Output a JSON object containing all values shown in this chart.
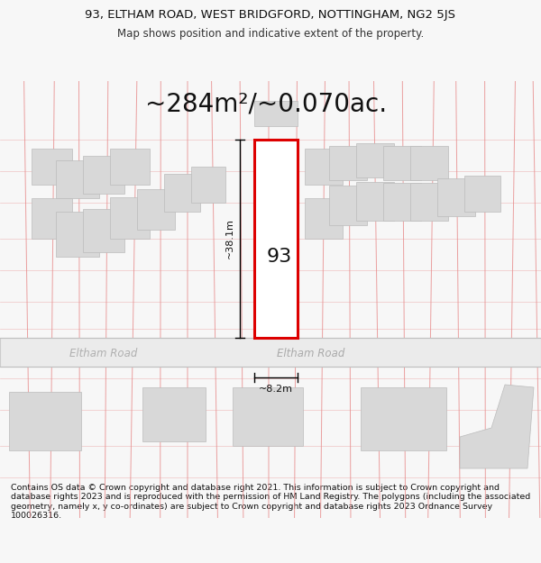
{
  "title_line1": "93, ELTHAM ROAD, WEST BRIDGFORD, NOTTINGHAM, NG2 5JS",
  "title_line2": "Map shows position and indicative extent of the property.",
  "area_label": "~284m²/~0.070ac.",
  "property_number": "93",
  "dim_height": "~38.1m",
  "dim_width": "~8.2m",
  "road_name": "Eltham Road",
  "copyright_text": "Contains OS data © Crown copyright and database right 2021. This information is subject to Crown copyright and database rights 2023 and is reproduced with the permission of HM Land Registry. The polygons (including the associated geometry, namely x, y co-ordinates) are subject to Crown copyright and database rights 2023 Ordnance Survey 100026316.",
  "bg_color": "#f7f7f7",
  "map_bg": "#ffffff",
  "grid_color": "#e89090",
  "building_color": "#d8d8d8",
  "building_edge": "#bbbbbb",
  "highlight_color": "#dd0000",
  "road_fill": "#ebebeb",
  "road_edge": "#cccccc",
  "road_label_color": "#b0b0b0",
  "title_fontsize": 9.5,
  "subtitle_fontsize": 8.5,
  "area_fontsize": 20,
  "dim_fontsize": 8,
  "number_fontsize": 16,
  "copyright_fontsize": 6.8
}
